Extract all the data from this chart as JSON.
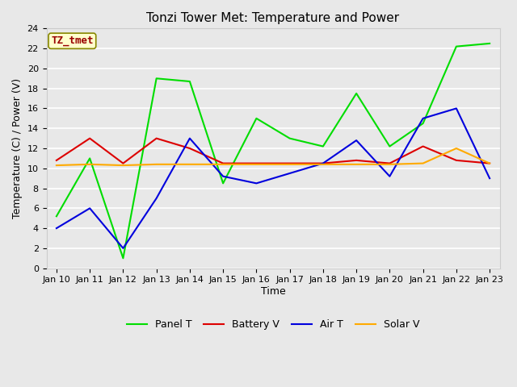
{
  "title": "Tonzi Tower Met: Temperature and Power",
  "xlabel": "Time",
  "ylabel": "Temperature (C) / Power (V)",
  "annotation": "TZ_tmet",
  "ylim": [
    0,
    24
  ],
  "yticks": [
    0,
    2,
    4,
    6,
    8,
    10,
    12,
    14,
    16,
    18,
    20,
    22,
    24
  ],
  "x_labels": [
    "Jan 10",
    "Jan 11",
    "Jan 12",
    "Jan 13",
    "Jan 14",
    "Jan 15",
    "Jan 16",
    "Jan 17",
    "Jan 18",
    "Jan 19",
    "Jan 20",
    "Jan 21",
    "Jan 22",
    "Jan 23"
  ],
  "bg_color": "#e8e8e8",
  "plot_bg_color": "#e8e8e8",
  "grid_color": "#ffffff",
  "panel_T": [
    5.2,
    11.0,
    1.0,
    19.0,
    18.7,
    8.5,
    15.0,
    13.0,
    12.2,
    17.5,
    12.2,
    14.5,
    22.2,
    22.5
  ],
  "battery_V": [
    10.8,
    13.0,
    10.5,
    13.0,
    12.0,
    10.5,
    10.5,
    10.5,
    10.5,
    10.8,
    10.5,
    12.2,
    10.8,
    10.5
  ],
  "air_T": [
    4.0,
    6.0,
    2.0,
    7.0,
    13.0,
    9.2,
    8.5,
    9.5,
    10.5,
    12.8,
    9.2,
    15.0,
    16.0,
    9.0
  ],
  "solar_V": [
    10.3,
    10.4,
    10.3,
    10.4,
    10.4,
    10.4,
    10.4,
    10.4,
    10.4,
    10.4,
    10.4,
    10.5,
    12.0,
    10.5
  ],
  "panel_T_color": "#00dd00",
  "battery_V_color": "#dd0000",
  "air_T_color": "#0000dd",
  "solar_V_color": "#ffaa00",
  "linewidth": 1.5,
  "legend_labels": [
    "Panel T",
    "Battery V",
    "Air T",
    "Solar V"
  ],
  "font_family": "DejaVu Sans",
  "title_fontsize": 11,
  "tick_fontsize": 8,
  "axis_label_fontsize": 9,
  "legend_fontsize": 9
}
